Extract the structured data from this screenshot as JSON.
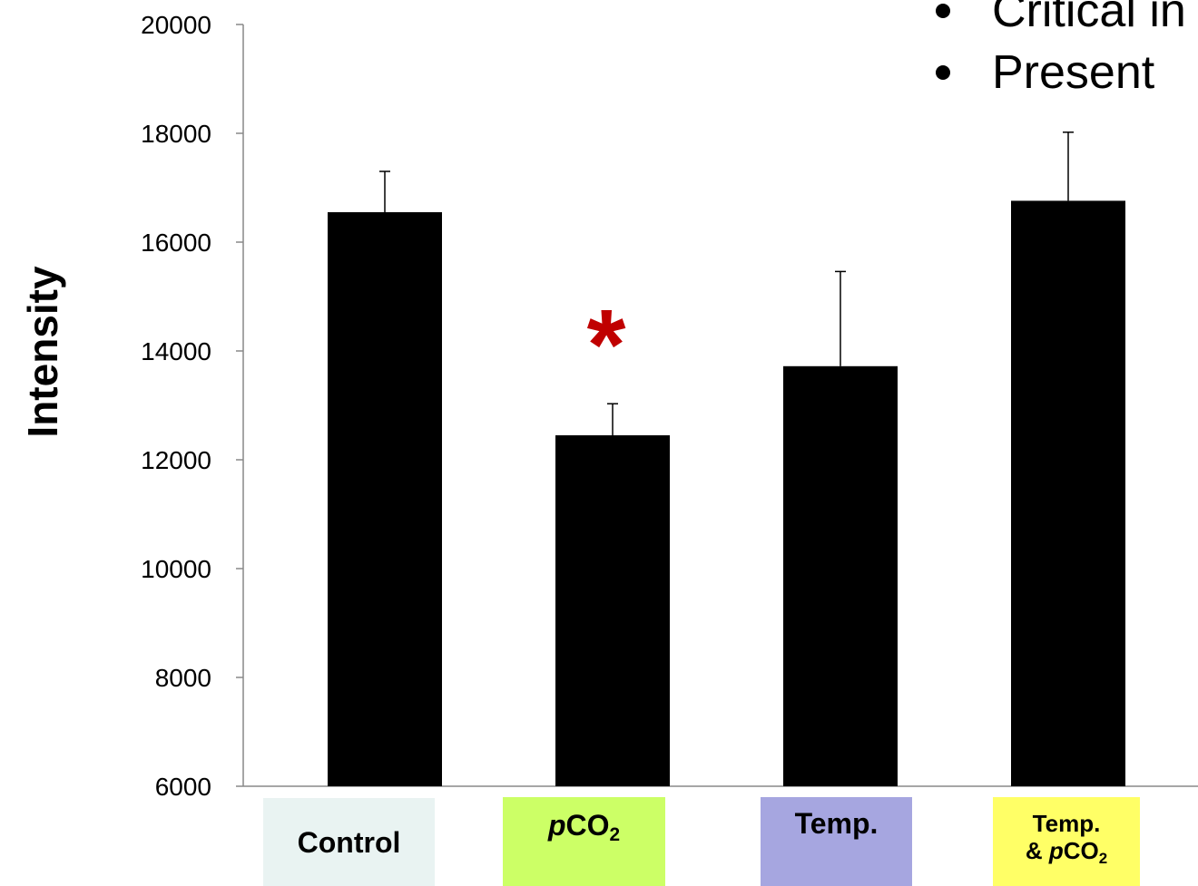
{
  "bullets": [
    {
      "text": "Critical in"
    },
    {
      "text": "Present"
    }
  ],
  "chart_data": {
    "type": "bar",
    "categories": [
      "Control",
      "pCO2",
      "Temp.",
      "Temp. & pCO2"
    ],
    "values": [
      16550,
      12450,
      13720,
      16760
    ],
    "errors": [
      750,
      580,
      1740,
      1260
    ],
    "ylabel": "Intensity",
    "ylim": [
      6000,
      20000
    ],
    "yticks": [
      "6000",
      "8000",
      "10000",
      "12000",
      "14000",
      "16000",
      "18000",
      "20000"
    ],
    "bar_color": "#000000",
    "significance": [
      {
        "category": "pCO2",
        "marker": "*",
        "color": "#c00000"
      }
    ]
  },
  "categories_display": [
    {
      "line1": "Control",
      "bg": "#e9f3f2"
    },
    {
      "italic": "p",
      "main": "CO",
      "sub": "2",
      "bg": "#ccff66"
    },
    {
      "line1": "Temp.",
      "bg": "#a6a6e0"
    },
    {
      "line1": "Temp.",
      "line2_prefix": "& ",
      "italic": "p",
      "main": "CO",
      "sub": "2",
      "bg": "#ffff66"
    }
  ]
}
